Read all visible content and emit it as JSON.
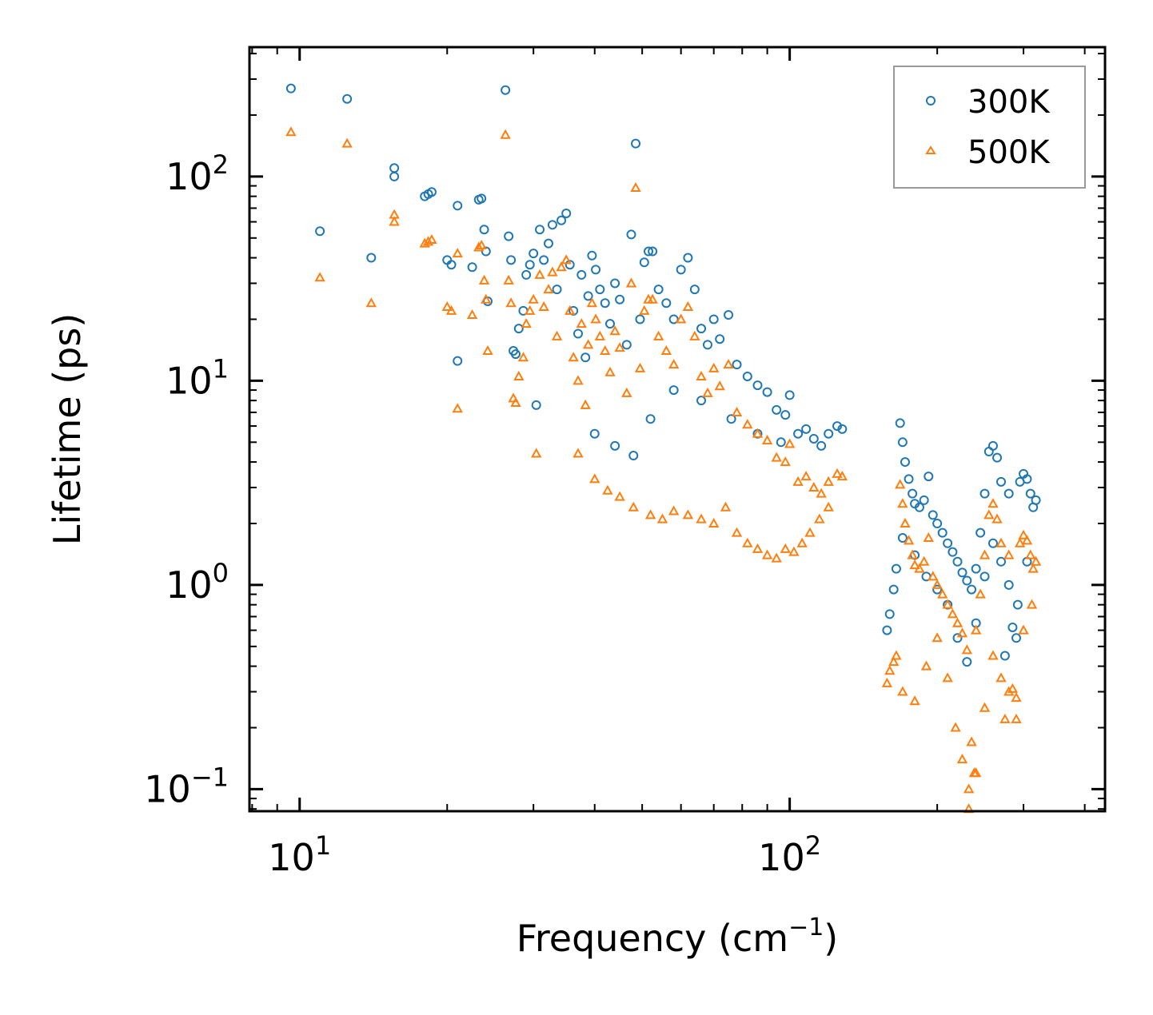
{
  "chart_data": {
    "type": "scatter",
    "title": "",
    "xlabel": "Frequency (cm",
    "xlabel_sup": "−1",
    "xlabel_end": ")",
    "ylabel": "Lifetime (ps)",
    "xscale": "log",
    "yscale": "log",
    "xlim": [
      7.9,
      440
    ],
    "ylim": [
      0.078,
      430
    ],
    "x_ticks": [
      {
        "value": 10,
        "base": "10",
        "exp": "1"
      },
      {
        "value": 100,
        "base": "10",
        "exp": "2"
      }
    ],
    "y_ticks": [
      {
        "value": 0.1,
        "base": "10",
        "exp": "−1"
      },
      {
        "value": 1,
        "base": "10",
        "exp": "0"
      },
      {
        "value": 10,
        "base": "10",
        "exp": "1"
      },
      {
        "value": 100,
        "base": "10",
        "exp": "2"
      }
    ],
    "legend": {
      "position": "top-right"
    },
    "series": [
      {
        "name": "300K",
        "marker": "circle",
        "color": "#1f77b4",
        "points": [
          [
            9.6,
            270
          ],
          [
            11,
            54
          ],
          [
            12.5,
            240
          ],
          [
            14,
            40
          ],
          [
            15.6,
            110
          ],
          [
            15.6,
            100
          ],
          [
            18,
            80
          ],
          [
            18.3,
            82
          ],
          [
            18.6,
            84
          ],
          [
            20,
            39
          ],
          [
            20.4,
            37
          ],
          [
            21,
            72
          ],
          [
            21,
            12.5
          ],
          [
            22.5,
            36
          ],
          [
            23.2,
            77
          ],
          [
            23.5,
            78
          ],
          [
            23.8,
            55
          ],
          [
            24,
            43
          ],
          [
            24.2,
            24.5
          ],
          [
            26.3,
            265
          ],
          [
            26.7,
            51
          ],
          [
            27,
            39
          ],
          [
            27.3,
            14
          ],
          [
            27.6,
            13.5
          ],
          [
            28,
            18
          ],
          [
            28.6,
            22
          ],
          [
            29,
            33
          ],
          [
            29.5,
            37
          ],
          [
            30,
            42
          ],
          [
            30.4,
            7.6
          ],
          [
            30.9,
            55
          ],
          [
            31.5,
            39
          ],
          [
            32.2,
            47
          ],
          [
            32.8,
            58
          ],
          [
            33.5,
            28
          ],
          [
            34.2,
            61
          ],
          [
            35,
            66
          ],
          [
            35.6,
            37
          ],
          [
            36.2,
            22
          ],
          [
            37,
            17
          ],
          [
            37.6,
            33
          ],
          [
            38.3,
            13
          ],
          [
            38.8,
            26
          ],
          [
            39.5,
            41
          ],
          [
            40.2,
            35
          ],
          [
            41,
            28
          ],
          [
            42,
            24
          ],
          [
            43,
            19
          ],
          [
            44,
            30
          ],
          [
            45,
            25
          ],
          [
            46.5,
            15
          ],
          [
            47.5,
            52
          ],
          [
            48.5,
            145
          ],
          [
            49.5,
            20
          ],
          [
            50.5,
            38
          ],
          [
            51.5,
            43
          ],
          [
            52.5,
            43
          ],
          [
            54,
            28
          ],
          [
            56,
            24
          ],
          [
            58,
            20
          ],
          [
            60,
            35
          ],
          [
            62,
            40
          ],
          [
            64,
            28
          ],
          [
            66,
            18
          ],
          [
            68,
            15
          ],
          [
            70,
            20
          ],
          [
            72,
            16
          ],
          [
            75,
            21
          ],
          [
            78,
            12
          ],
          [
            82,
            10.5
          ],
          [
            86,
            9.5
          ],
          [
            90,
            8.8
          ],
          [
            94,
            7.2
          ],
          [
            98,
            6.8
          ],
          [
            100,
            8.5
          ],
          [
            104,
            5.5
          ],
          [
            108,
            5.8
          ],
          [
            112,
            5.2
          ],
          [
            116,
            4.8
          ],
          [
            120,
            5.5
          ],
          [
            125,
            6
          ],
          [
            128,
            5.8
          ],
          [
            40,
            5.5
          ],
          [
            44,
            4.8
          ],
          [
            48,
            4.3
          ],
          [
            52,
            6.5
          ],
          [
            58,
            9
          ],
          [
            66,
            8
          ],
          [
            76,
            6.5
          ],
          [
            86,
            5.5
          ],
          [
            96,
            5
          ],
          [
            158,
            0.6
          ],
          [
            160,
            0.72
          ],
          [
            163,
            0.95
          ],
          [
            165,
            1.2
          ],
          [
            168,
            6.2
          ],
          [
            170,
            5
          ],
          [
            172,
            4
          ],
          [
            175,
            3.3
          ],
          [
            178,
            2.8
          ],
          [
            180,
            2.5
          ],
          [
            184,
            2.4
          ],
          [
            188,
            2.6
          ],
          [
            192,
            3.4
          ],
          [
            196,
            2.2
          ],
          [
            200,
            2
          ],
          [
            205,
            1.8
          ],
          [
            210,
            1.6
          ],
          [
            215,
            1.45
          ],
          [
            220,
            1.3
          ],
          [
            225,
            1.15
          ],
          [
            230,
            1.05
          ],
          [
            235,
            0.95
          ],
          [
            240,
            1.2
          ],
          [
            245,
            1.8
          ],
          [
            250,
            2.8
          ],
          [
            255,
            4.5
          ],
          [
            260,
            4.8
          ],
          [
            265,
            4.2
          ],
          [
            270,
            3.2
          ],
          [
            275,
            0.45
          ],
          [
            280,
            2.8
          ],
          [
            285,
            0.62
          ],
          [
            290,
            0.55
          ],
          [
            295,
            3.2
          ],
          [
            300,
            3.5
          ],
          [
            305,
            3.3
          ],
          [
            310,
            2.8
          ],
          [
            314,
            2.4
          ],
          [
            318,
            2.6
          ],
          [
            170,
            1.7
          ],
          [
            180,
            1.4
          ],
          [
            190,
            1.1
          ],
          [
            200,
            0.95
          ],
          [
            210,
            0.8
          ],
          [
            220,
            0.55
          ],
          [
            230,
            0.42
          ],
          [
            240,
            0.65
          ],
          [
            250,
            1.1
          ],
          [
            260,
            1.6
          ],
          [
            270,
            1.3
          ],
          [
            280,
            1
          ],
          [
            292,
            0.8
          ],
          [
            305,
            1.3
          ]
        ]
      },
      {
        "name": "500K",
        "marker": "triangle",
        "color": "#ff7f0e",
        "points": [
          [
            9.6,
            165
          ],
          [
            11,
            32
          ],
          [
            12.5,
            145
          ],
          [
            14,
            24
          ],
          [
            15.6,
            65
          ],
          [
            15.6,
            60
          ],
          [
            18,
            47
          ],
          [
            18.3,
            48
          ],
          [
            18.6,
            49
          ],
          [
            20,
            23
          ],
          [
            20.4,
            22
          ],
          [
            21,
            42
          ],
          [
            21,
            7.3
          ],
          [
            22.5,
            21
          ],
          [
            23.2,
            45
          ],
          [
            23.5,
            46
          ],
          [
            23.8,
            31
          ],
          [
            24,
            25
          ],
          [
            24.2,
            14
          ],
          [
            26.3,
            160
          ],
          [
            26.7,
            31
          ],
          [
            27,
            24
          ],
          [
            27.3,
            8.2
          ],
          [
            27.6,
            7.8
          ],
          [
            28,
            10.5
          ],
          [
            28.6,
            13
          ],
          [
            29,
            19
          ],
          [
            29.5,
            22
          ],
          [
            30,
            25
          ],
          [
            30.4,
            4.4
          ],
          [
            30.9,
            33
          ],
          [
            31.5,
            23
          ],
          [
            32.2,
            28
          ],
          [
            32.8,
            34
          ],
          [
            33.5,
            16.5
          ],
          [
            34.2,
            36
          ],
          [
            35,
            39
          ],
          [
            35.6,
            22
          ],
          [
            36.2,
            13
          ],
          [
            37,
            10
          ],
          [
            37.6,
            19
          ],
          [
            38.3,
            7.6
          ],
          [
            38.8,
            15
          ],
          [
            39.5,
            24
          ],
          [
            40.2,
            20
          ],
          [
            41,
            16.5
          ],
          [
            42,
            14
          ],
          [
            43,
            11
          ],
          [
            44,
            17.5
          ],
          [
            45,
            14.5
          ],
          [
            46.5,
            8.7
          ],
          [
            47.5,
            30
          ],
          [
            48.5,
            88
          ],
          [
            49.5,
            11.5
          ],
          [
            50.5,
            22
          ],
          [
            51.5,
            25
          ],
          [
            52.5,
            25
          ],
          [
            54,
            16.5
          ],
          [
            56,
            14
          ],
          [
            58,
            12
          ],
          [
            60,
            20
          ],
          [
            62,
            23
          ],
          [
            64,
            16.5
          ],
          [
            66,
            10.5
          ],
          [
            68,
            8.7
          ],
          [
            70,
            11.5
          ],
          [
            72,
            9.4
          ],
          [
            75,
            12
          ],
          [
            78,
            7
          ],
          [
            82,
            6.1
          ],
          [
            86,
            5.5
          ],
          [
            90,
            5.1
          ],
          [
            94,
            4.2
          ],
          [
            98,
            4
          ],
          [
            100,
            4.9
          ],
          [
            104,
            3.2
          ],
          [
            108,
            3.4
          ],
          [
            112,
            3
          ],
          [
            116,
            2.8
          ],
          [
            120,
            3.2
          ],
          [
            125,
            3.5
          ],
          [
            128,
            3.4
          ],
          [
            37,
            4.4
          ],
          [
            40,
            3.3
          ],
          [
            42.5,
            2.9
          ],
          [
            45,
            2.7
          ],
          [
            48,
            2.4
          ],
          [
            52,
            2.2
          ],
          [
            55,
            2.1
          ],
          [
            58,
            2.3
          ],
          [
            62,
            2.2
          ],
          [
            66,
            2.1
          ],
          [
            70,
            2
          ],
          [
            74,
            2.4
          ],
          [
            78,
            1.8
          ],
          [
            82,
            1.6
          ],
          [
            86,
            1.5
          ],
          [
            90,
            1.4
          ],
          [
            94,
            1.35
          ],
          [
            98,
            1.5
          ],
          [
            102,
            1.45
          ],
          [
            106,
            1.6
          ],
          [
            110,
            1.8
          ],
          [
            115,
            2.1
          ],
          [
            120,
            2.4
          ],
          [
            158,
            0.33
          ],
          [
            160,
            0.38
          ],
          [
            163,
            0.42
          ],
          [
            165,
            0.45
          ],
          [
            168,
            3.1
          ],
          [
            170,
            2.5
          ],
          [
            172,
            2
          ],
          [
            175,
            1.65
          ],
          [
            178,
            1.4
          ],
          [
            180,
            1.25
          ],
          [
            184,
            1.2
          ],
          [
            188,
            1.3
          ],
          [
            192,
            1.7
          ],
          [
            196,
            1.1
          ],
          [
            200,
            1
          ],
          [
            205,
            0.9
          ],
          [
            210,
            0.8
          ],
          [
            215,
            0.72
          ],
          [
            220,
            0.65
          ],
          [
            225,
            0.58
          ],
          [
            230,
            0.48
          ],
          [
            232,
            0.08
          ],
          [
            235,
            0.17
          ],
          [
            238,
            0.12
          ],
          [
            240,
            0.6
          ],
          [
            245,
            0.9
          ],
          [
            250,
            1.4
          ],
          [
            255,
            2.2
          ],
          [
            260,
            2.5
          ],
          [
            265,
            2.1
          ],
          [
            270,
            1.6
          ],
          [
            275,
            0.22
          ],
          [
            280,
            1.4
          ],
          [
            285,
            0.31
          ],
          [
            290,
            0.28
          ],
          [
            295,
            1.6
          ],
          [
            300,
            1.75
          ],
          [
            305,
            1.65
          ],
          [
            310,
            1.4
          ],
          [
            314,
            1.2
          ],
          [
            318,
            1.3
          ],
          [
            170,
            0.3
          ],
          [
            180,
            0.27
          ],
          [
            190,
            0.4
          ],
          [
            200,
            0.55
          ],
          [
            210,
            0.35
          ],
          [
            218,
            0.2
          ],
          [
            225,
            0.14
          ],
          [
            232,
            0.1
          ],
          [
            240,
            0.12
          ],
          [
            250,
            0.25
          ],
          [
            260,
            0.45
          ],
          [
            270,
            0.35
          ],
          [
            280,
            0.3
          ],
          [
            290,
            0.22
          ],
          [
            300,
            0.6
          ],
          [
            312,
            0.8
          ]
        ]
      }
    ]
  }
}
